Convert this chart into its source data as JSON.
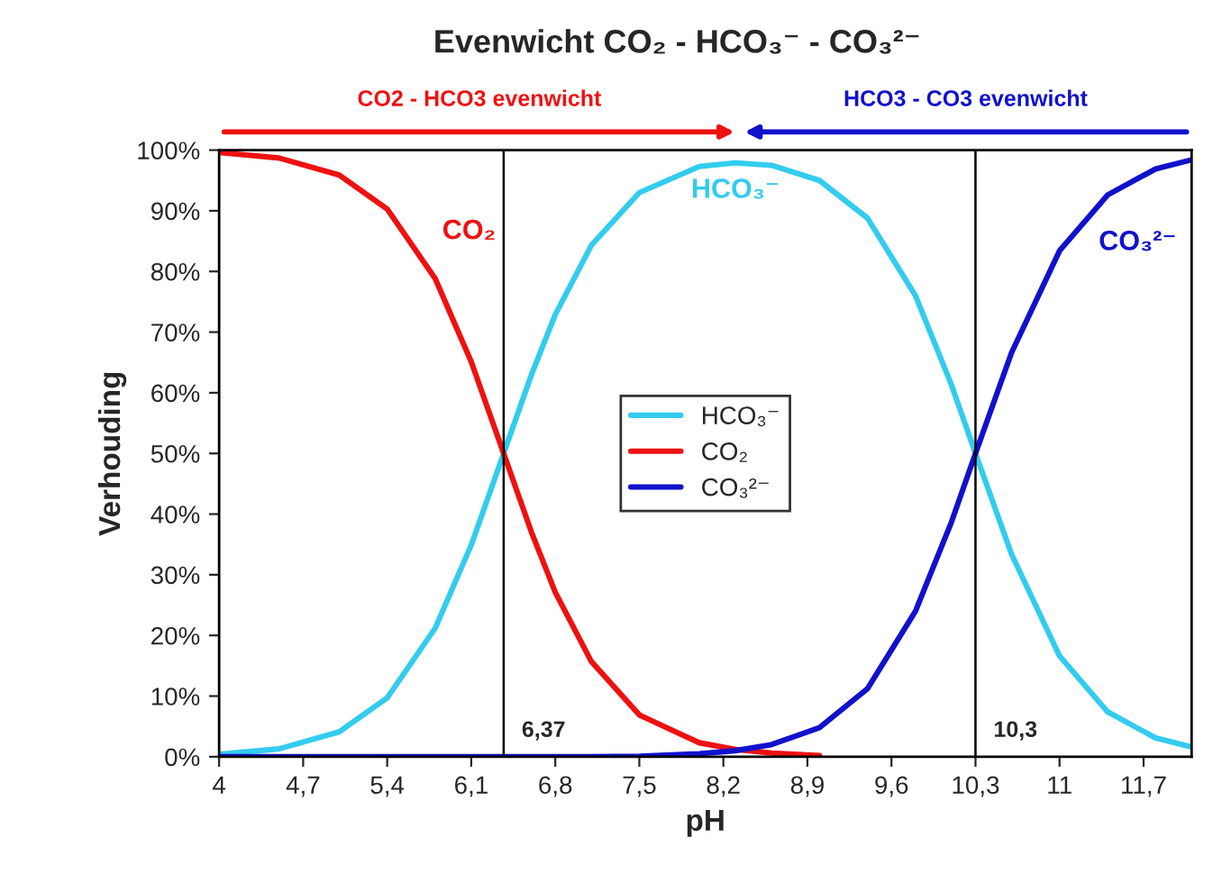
{
  "chart_data": {
    "type": "line",
    "title": "Evenwicht CO₂ - HCO₃⁻ - CO₃²⁻",
    "xlabel": "pH",
    "ylabel": "Verhouding",
    "x": [
      4,
      4.5,
      5,
      5.4,
      5.8,
      6.1,
      6.37,
      6.6,
      6.8,
      7.1,
      7.5,
      8,
      8.3,
      8.6,
      9,
      9.4,
      9.8,
      10.1,
      10.3,
      10.6,
      11,
      11.4,
      11.8,
      12.1
    ],
    "series": [
      {
        "name": "HCO₃⁻",
        "color": "#33ccee",
        "values": [
          0.4,
          1.3,
          4.1,
          9.7,
          21.2,
          34.9,
          50,
          62.9,
          72.9,
          84.3,
          93.0,
          97.3,
          97.9,
          97.5,
          95.0,
          88.8,
          76.0,
          61.3,
          50,
          33.4,
          16.6,
          7.4,
          3.1,
          1.6
        ]
      },
      {
        "name": "CO₂",
        "color": "#ee1111",
        "values": [
          99.6,
          98.7,
          95.9,
          90.3,
          78.8,
          65.1,
          50,
          37.1,
          27.1,
          15.7,
          6.9,
          2.3,
          1.2,
          0.6,
          0.2,
          null,
          null,
          null,
          null,
          null,
          null,
          null,
          null,
          null
        ]
      },
      {
        "name": "CO₃²⁻",
        "color": "#1111cc",
        "values": [
          0,
          0,
          0,
          0,
          0,
          0,
          0,
          0,
          0,
          0,
          0.1,
          0.5,
          1.0,
          2.0,
          4.8,
          11.2,
          24.0,
          38.7,
          50,
          66.6,
          83.4,
          92.6,
          96.9,
          98.4
        ]
      }
    ],
    "xlim": [
      4,
      12.1
    ],
    "xticks": [
      4,
      {
        "value": 4.7,
        "label": "4,7"
      },
      {
        "value": 5.4,
        "label": "5,4"
      },
      {
        "value": 6.1,
        "label": "6,1"
      },
      {
        "value": 6.8,
        "label": "6,8"
      },
      {
        "value": 7.5,
        "label": "7,5"
      },
      {
        "value": 8.2,
        "label": "8,2"
      },
      {
        "value": 8.9,
        "label": "8,9"
      },
      {
        "value": 9.6,
        "label": "9,6"
      },
      {
        "value": 10.3,
        "label": "10,3"
      },
      {
        "value": 11,
        "label": "11"
      },
      {
        "value": 11.7,
        "label": "11,7"
      }
    ],
    "ylim": [
      0,
      100
    ],
    "yticks": [
      {
        "value": 0,
        "label": "0%"
      },
      {
        "value": 10,
        "label": "10%"
      },
      {
        "value": 20,
        "label": "20%"
      },
      {
        "value": 30,
        "label": "30%"
      },
      {
        "value": 40,
        "label": "40%"
      },
      {
        "value": 50,
        "label": "50%"
      },
      {
        "value": 60,
        "label": "60%"
      },
      {
        "value": 70,
        "label": "70%"
      },
      {
        "value": 80,
        "label": "80%"
      },
      {
        "value": 90,
        "label": "90%"
      },
      {
        "value": 100,
        "label": "100%"
      }
    ],
    "ref_lines": [
      {
        "axis": "x",
        "value": 6.37,
        "label": "6,37",
        "color": "#000000"
      },
      {
        "axis": "x",
        "value": 10.3,
        "label": "10,3",
        "color": "#000000"
      }
    ],
    "annotations": [
      {
        "text": "HCO₃⁻",
        "x": 8.3,
        "y": 97.9
      },
      {
        "text": "CO₂",
        "x": 5.4,
        "y": 90.3
      },
      {
        "text": "CO₃²⁻",
        "x": 11.4,
        "y": 92.6
      },
      "CO2 - HCO3 evenwicht",
      "HCO3 - CO3 evenwicht"
    ],
    "legend": "center",
    "grid": false,
    "marker": "none",
    "line_style": "solid"
  }
}
